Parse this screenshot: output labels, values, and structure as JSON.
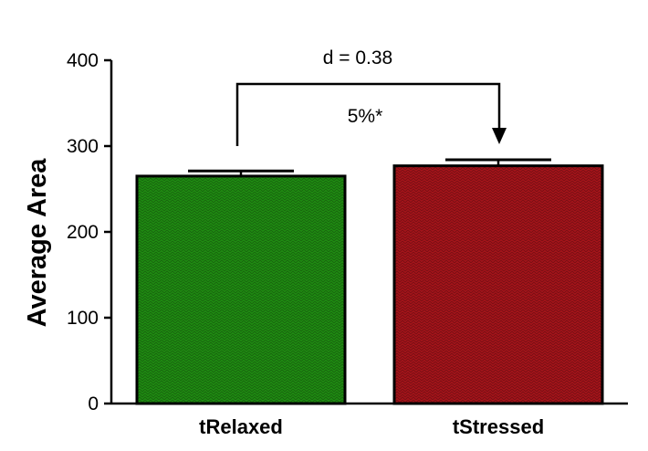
{
  "chart_data": {
    "type": "bar",
    "categories": [
      "tRelaxed",
      "tStressed"
    ],
    "values": [
      265,
      277
    ],
    "errors": [
      6,
      7
    ],
    "colors": [
      "#1f8a12",
      "#a3141a"
    ],
    "ylabel": "Average Area",
    "xlabel": "",
    "ylim": [
      0,
      400
    ],
    "yticks": [
      0,
      100,
      200,
      300,
      400
    ],
    "grid": false,
    "annotations": {
      "effect_size": "d = 0.38",
      "percent_change": "5%*"
    }
  }
}
